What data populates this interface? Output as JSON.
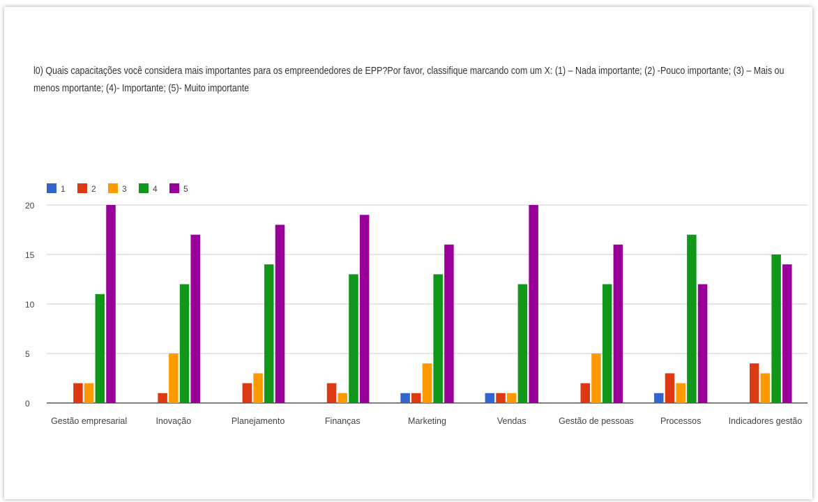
{
  "question": "l0) Quais capacitações você considera mais importantes para os empreendedores de EPP?Por favor, classifique marcando com um X: (1) – Nada importante; (2) -Pouco importante; (3) – Mais ou menos mportante; (4)- Importante; (5)- Muito importante",
  "chart_data": {
    "type": "bar",
    "title": "",
    "xlabel": "",
    "ylabel": "",
    "ylim": [
      0,
      20
    ],
    "yticks": [
      "0",
      "5",
      "10",
      "15",
      "20"
    ],
    "grid": true,
    "legend_position": "top-left",
    "categories": [
      "Gestão empresarial",
      "Inovação",
      "Planejamento",
      "Finanças",
      "Marketing",
      "Vendas",
      "Gestão de pessoas",
      "Processos",
      "Indicadores gestão"
    ],
    "series": [
      {
        "name": "1",
        "color": "#3366cc",
        "values": [
          0,
          0,
          0,
          0,
          1,
          1,
          0,
          1,
          0
        ]
      },
      {
        "name": "2",
        "color": "#dc3912",
        "values": [
          2,
          1,
          2,
          2,
          1,
          1,
          2,
          3,
          4
        ]
      },
      {
        "name": "3",
        "color": "#ff9900",
        "values": [
          2,
          5,
          3,
          1,
          4,
          1,
          5,
          2,
          3
        ]
      },
      {
        "name": "4",
        "color": "#109618",
        "values": [
          11,
          12,
          14,
          13,
          13,
          12,
          12,
          17,
          15
        ]
      },
      {
        "name": "5",
        "color": "#990099",
        "values": [
          20,
          17,
          18,
          19,
          16,
          20,
          16,
          12,
          14
        ]
      }
    ]
  }
}
